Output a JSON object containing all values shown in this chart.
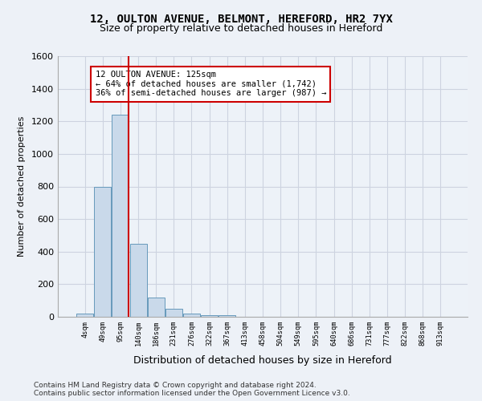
{
  "title_line1": "12, OULTON AVENUE, BELMONT, HEREFORD, HR2 7YX",
  "title_line2": "Size of property relative to detached houses in Hereford",
  "xlabel": "Distribution of detached houses by size in Hereford",
  "ylabel": "Number of detached properties",
  "bar_values": [
    20,
    800,
    1240,
    450,
    120,
    50,
    20,
    10,
    10,
    0,
    0,
    0,
    0,
    0,
    0,
    0,
    0,
    0,
    0,
    0,
    0
  ],
  "bar_labels": [
    "4sqm",
    "49sqm",
    "95sqm",
    "140sqm",
    "186sqm",
    "231sqm",
    "276sqm",
    "322sqm",
    "367sqm",
    "413sqm",
    "458sqm",
    "504sqm",
    "549sqm",
    "595sqm",
    "640sqm",
    "686sqm",
    "731sqm",
    "777sqm",
    "822sqm",
    "868sqm",
    "913sqm"
  ],
  "bar_color": "#c9d9ea",
  "bar_edge_color": "#6699bb",
  "grid_color": "#cdd3e0",
  "vline_color": "#cc0000",
  "vline_pos": 2.45,
  "annotation_text": "12 OULTON AVENUE: 125sqm\n← 64% of detached houses are smaller (1,742)\n36% of semi-detached houses are larger (987) →",
  "ylim_max": 1600,
  "yticks": [
    0,
    200,
    400,
    600,
    800,
    1000,
    1200,
    1400,
    1600
  ],
  "footer_text": "Contains HM Land Registry data © Crown copyright and database right 2024.\nContains public sector information licensed under the Open Government Licence v3.0.",
  "bg_color": "#edf1f7",
  "plot_bg_color": "#edf2f8"
}
